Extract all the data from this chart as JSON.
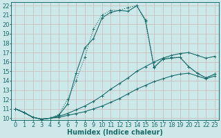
{
  "xlabel": "Humidex (Indice chaleur)",
  "bg_color": "#cce8e8",
  "line_color": "#1a6b6b",
  "grid_color": "#b0d4d4",
  "xlim": [
    -0.5,
    23.5
  ],
  "ylim": [
    9.8,
    22.4
  ],
  "xticks": [
    0,
    1,
    2,
    3,
    4,
    5,
    6,
    7,
    8,
    9,
    10,
    11,
    12,
    13,
    14,
    15,
    16,
    17,
    18,
    19,
    20,
    21,
    22,
    23
  ],
  "yticks": [
    10,
    11,
    12,
    13,
    14,
    15,
    16,
    17,
    18,
    19,
    20,
    21,
    22
  ],
  "line1_x": [
    0,
    1,
    2,
    3,
    4,
    5,
    6,
    7,
    8,
    9,
    10,
    11,
    12,
    13,
    14,
    15,
    16,
    17,
    18,
    19,
    20,
    21,
    22,
    23
  ],
  "line1_y": [
    11.0,
    10.6,
    10.1,
    9.9,
    10.0,
    10.1,
    10.3,
    10.5,
    10.7,
    11.0,
    11.3,
    11.7,
    12.1,
    12.6,
    13.1,
    13.5,
    13.9,
    14.2,
    14.5,
    14.7,
    14.8,
    14.5,
    14.2,
    14.5
  ],
  "line2_x": [
    0,
    1,
    2,
    3,
    4,
    5,
    6,
    7,
    8,
    9,
    10,
    11,
    12,
    13,
    14,
    15,
    16,
    17,
    18,
    19,
    20,
    21,
    22,
    23
  ],
  "line2_y": [
    11.0,
    10.6,
    10.1,
    9.9,
    10.0,
    10.2,
    10.5,
    10.9,
    11.3,
    11.8,
    12.4,
    13.1,
    13.7,
    14.3,
    15.0,
    15.5,
    16.0,
    16.4,
    16.7,
    16.9,
    17.0,
    16.7,
    16.4,
    16.6
  ],
  "line3_x": [
    0,
    1,
    2,
    3,
    4,
    5,
    6,
    7,
    8,
    9,
    10,
    11,
    12,
    13,
    14,
    15,
    16,
    17,
    18,
    19,
    20,
    21,
    22,
    23
  ],
  "line3_y": [
    11.0,
    10.6,
    10.1,
    9.9,
    10.0,
    10.3,
    11.5,
    14.8,
    17.5,
    18.5,
    20.7,
    21.3,
    21.5,
    21.4,
    22.0,
    20.5,
    15.4,
    16.3,
    16.4,
    16.5,
    15.5,
    14.8,
    14.3,
    14.7
  ],
  "line4_x": [
    0,
    1,
    2,
    3,
    4,
    5,
    6,
    7,
    8,
    9,
    10,
    11,
    12,
    13,
    14,
    15,
    16,
    17,
    18,
    19,
    20,
    21,
    22,
    23
  ],
  "line4_y": [
    11.0,
    10.6,
    10.1,
    9.9,
    10.0,
    10.4,
    12.0,
    14.0,
    16.5,
    19.5,
    21.0,
    21.5,
    21.5,
    21.8,
    22.0,
    20.3,
    15.5,
    16.3,
    16.5,
    16.5,
    15.5,
    14.8,
    14.3,
    14.7
  ],
  "xlabel_fontsize": 7,
  "tick_fontsize": 6
}
